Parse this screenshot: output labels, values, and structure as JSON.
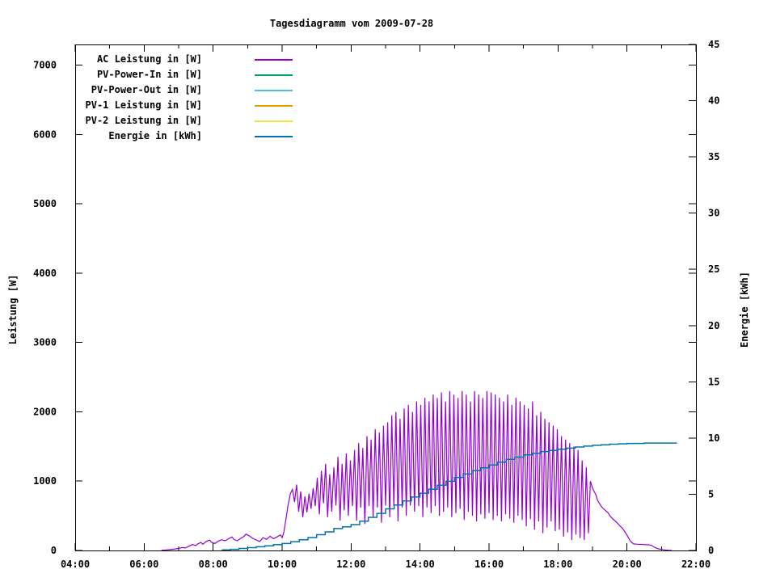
{
  "chart_data": {
    "type": "line",
    "title": "Tagesdiagramm vom 2009-07-28",
    "legend_position": "top-left",
    "grid": false,
    "x_axis": {
      "unit": "time",
      "range_hours": [
        4,
        22
      ],
      "tick_hours": [
        4,
        6,
        8,
        10,
        12,
        14,
        16,
        18,
        20,
        22
      ],
      "tick_labels": [
        "04:00",
        "06:00",
        "08:00",
        "10:00",
        "12:00",
        "14:00",
        "16:00",
        "18:00",
        "20:00",
        "22:00"
      ],
      "minor_tick_hours": [
        5,
        7,
        9,
        11,
        13,
        15,
        17,
        19,
        21
      ]
    },
    "y_axis": {
      "label": "Leistung [W]",
      "range": [
        0,
        7300
      ],
      "tick_values": [
        0,
        1000,
        2000,
        3000,
        4000,
        5000,
        6000,
        7000
      ],
      "tick_labels": [
        "0",
        "1000",
        "2000",
        "3000",
        "4000",
        "5000",
        "6000",
        "7000"
      ]
    },
    "y2_axis": {
      "label": "Energie [kWh]",
      "range": [
        0,
        45
      ],
      "tick_values": [
        0,
        5,
        10,
        15,
        20,
        25,
        30,
        35,
        40,
        45
      ],
      "tick_labels": [
        "0",
        "5",
        "10",
        "15",
        "20",
        "25",
        "30",
        "35",
        "40",
        "45"
      ]
    },
    "series": [
      {
        "name": "AC Leistung in [W]",
        "color": "#9400D3",
        "axis": "y1",
        "style": "line",
        "points": [
          [
            6.5,
            3
          ],
          [
            6.6,
            6
          ],
          [
            6.7,
            10
          ],
          [
            6.8,
            16
          ],
          [
            6.9,
            22
          ],
          [
            7.0,
            30
          ],
          [
            7.1,
            42
          ],
          [
            7.2,
            36
          ],
          [
            7.3,
            62
          ],
          [
            7.4,
            85
          ],
          [
            7.5,
            70
          ],
          [
            7.55,
            95
          ],
          [
            7.65,
            115
          ],
          [
            7.7,
            90
          ],
          [
            7.8,
            130
          ],
          [
            7.9,
            150
          ],
          [
            7.95,
            120
          ],
          [
            8.05,
            100
          ],
          [
            8.15,
            135
          ],
          [
            8.25,
            155
          ],
          [
            8.35,
            140
          ],
          [
            8.45,
            170
          ],
          [
            8.55,
            195
          ],
          [
            8.6,
            160
          ],
          [
            8.7,
            140
          ],
          [
            8.8,
            175
          ],
          [
            8.9,
            205
          ],
          [
            8.95,
            235
          ],
          [
            9.05,
            210
          ],
          [
            9.15,
            175
          ],
          [
            9.25,
            150
          ],
          [
            9.35,
            130
          ],
          [
            9.45,
            185
          ],
          [
            9.55,
            160
          ],
          [
            9.65,
            205
          ],
          [
            9.75,
            170
          ],
          [
            9.85,
            195
          ],
          [
            9.95,
            225
          ],
          [
            10.0,
            185
          ],
          [
            10.05,
            260
          ],
          [
            10.1,
            420
          ],
          [
            10.17,
            650
          ],
          [
            10.24,
            820
          ],
          [
            10.3,
            880
          ],
          [
            10.36,
            700
          ],
          [
            10.42,
            950
          ],
          [
            10.48,
            560
          ],
          [
            10.54,
            850
          ],
          [
            10.6,
            480
          ],
          [
            10.66,
            780
          ],
          [
            10.72,
            550
          ],
          [
            10.78,
            820
          ],
          [
            10.84,
            600
          ],
          [
            10.9,
            900
          ],
          [
            10.96,
            640
          ],
          [
            11.02,
            1050
          ],
          [
            11.08,
            520
          ],
          [
            11.14,
            1150
          ],
          [
            11.2,
            680
          ],
          [
            11.26,
            1250
          ],
          [
            11.32,
            480
          ],
          [
            11.38,
            1100
          ],
          [
            11.44,
            560
          ],
          [
            11.5,
            1200
          ],
          [
            11.56,
            650
          ],
          [
            11.62,
            1350
          ],
          [
            11.68,
            430
          ],
          [
            11.74,
            1250
          ],
          [
            11.8,
            580
          ],
          [
            11.86,
            1400
          ],
          [
            11.92,
            500
          ],
          [
            11.98,
            1300
          ],
          [
            12.04,
            640
          ],
          [
            12.1,
            1450
          ],
          [
            12.16,
            430
          ],
          [
            12.22,
            1550
          ],
          [
            12.28,
            620
          ],
          [
            12.34,
            1480
          ],
          [
            12.4,
            380
          ],
          [
            12.46,
            1650
          ],
          [
            12.52,
            640
          ],
          [
            12.58,
            1600
          ],
          [
            12.64,
            480
          ],
          [
            12.7,
            1750
          ],
          [
            12.76,
            620
          ],
          [
            12.82,
            1700
          ],
          [
            12.88,
            400
          ],
          [
            12.94,
            1800
          ],
          [
            13.0,
            650
          ],
          [
            13.06,
            1850
          ],
          [
            13.12,
            480
          ],
          [
            13.18,
            1950
          ],
          [
            13.24,
            640
          ],
          [
            13.3,
            2000
          ],
          [
            13.36,
            420
          ],
          [
            13.42,
            1900
          ],
          [
            13.48,
            620
          ],
          [
            13.54,
            2050
          ],
          [
            13.6,
            500
          ],
          [
            13.66,
            2100
          ],
          [
            13.72,
            650
          ],
          [
            13.78,
            2000
          ],
          [
            13.84,
            560
          ],
          [
            13.9,
            2150
          ],
          [
            13.96,
            640
          ],
          [
            14.02,
            2100
          ],
          [
            14.08,
            480
          ],
          [
            14.14,
            2200
          ],
          [
            14.2,
            620
          ],
          [
            14.26,
            2150
          ],
          [
            14.32,
            540
          ],
          [
            14.38,
            2250
          ],
          [
            14.44,
            640
          ],
          [
            14.5,
            2200
          ],
          [
            14.56,
            500
          ],
          [
            14.62,
            2280
          ],
          [
            14.68,
            560
          ],
          [
            14.74,
            2150
          ],
          [
            14.8,
            620
          ],
          [
            14.86,
            2300
          ],
          [
            14.92,
            480
          ],
          [
            14.98,
            2250
          ],
          [
            15.04,
            540
          ],
          [
            15.1,
            2200
          ],
          [
            15.16,
            600
          ],
          [
            15.22,
            2300
          ],
          [
            15.28,
            440
          ],
          [
            15.34,
            2250
          ],
          [
            15.4,
            560
          ],
          [
            15.46,
            2150
          ],
          [
            15.52,
            500
          ],
          [
            15.58,
            2300
          ],
          [
            15.64,
            420
          ],
          [
            15.7,
            2250
          ],
          [
            15.76,
            520
          ],
          [
            15.82,
            2200
          ],
          [
            15.88,
            460
          ],
          [
            15.94,
            2300
          ],
          [
            16.0,
            540
          ],
          [
            16.06,
            2280
          ],
          [
            16.12,
            440
          ],
          [
            16.18,
            2250
          ],
          [
            16.24,
            500
          ],
          [
            16.3,
            2200
          ],
          [
            16.36,
            420
          ],
          [
            16.42,
            2150
          ],
          [
            16.48,
            520
          ],
          [
            16.54,
            2250
          ],
          [
            16.6,
            460
          ],
          [
            16.66,
            2100
          ],
          [
            16.72,
            400
          ],
          [
            16.78,
            2200
          ],
          [
            16.84,
            500
          ],
          [
            16.9,
            2150
          ],
          [
            16.96,
            440
          ],
          [
            17.02,
            2100
          ],
          [
            17.08,
            350
          ],
          [
            17.14,
            2050
          ],
          [
            17.2,
            450
          ],
          [
            17.26,
            2150
          ],
          [
            17.32,
            300
          ],
          [
            17.38,
            1950
          ],
          [
            17.44,
            420
          ],
          [
            17.5,
            2000
          ],
          [
            17.56,
            250
          ],
          [
            17.62,
            1900
          ],
          [
            17.68,
            330
          ],
          [
            17.74,
            1850
          ],
          [
            17.8,
            420
          ],
          [
            17.86,
            1800
          ],
          [
            17.92,
            280
          ],
          [
            17.98,
            1750
          ],
          [
            18.04,
            300
          ],
          [
            18.1,
            1650
          ],
          [
            18.16,
            200
          ],
          [
            18.22,
            1600
          ],
          [
            18.28,
            260
          ],
          [
            18.34,
            1550
          ],
          [
            18.4,
            150
          ],
          [
            18.46,
            1500
          ],
          [
            18.52,
            230
          ],
          [
            18.58,
            1450
          ],
          [
            18.64,
            180
          ],
          [
            18.7,
            1300
          ],
          [
            18.76,
            150
          ],
          [
            18.82,
            1200
          ],
          [
            18.88,
            250
          ],
          [
            18.94,
            1000
          ],
          [
            19.0,
            900
          ],
          [
            19.05,
            850
          ],
          [
            19.1,
            800
          ],
          [
            19.15,
            720
          ],
          [
            19.2,
            680
          ],
          [
            19.25,
            640
          ],
          [
            19.3,
            610
          ],
          [
            19.35,
            590
          ],
          [
            19.4,
            565
          ],
          [
            19.45,
            545
          ],
          [
            19.5,
            505
          ],
          [
            19.55,
            475
          ],
          [
            19.6,
            450
          ],
          [
            19.65,
            430
          ],
          [
            19.7,
            405
          ],
          [
            19.75,
            380
          ],
          [
            19.8,
            350
          ],
          [
            19.85,
            330
          ],
          [
            19.9,
            300
          ],
          [
            19.95,
            260
          ],
          [
            20.0,
            220
          ],
          [
            20.05,
            175
          ],
          [
            20.1,
            135
          ],
          [
            20.15,
            110
          ],
          [
            20.2,
            95
          ],
          [
            20.3,
            90
          ],
          [
            20.4,
            88
          ],
          [
            20.5,
            85
          ],
          [
            20.6,
            82
          ],
          [
            20.7,
            78
          ],
          [
            20.8,
            45
          ],
          [
            20.9,
            25
          ],
          [
            21.0,
            15
          ],
          [
            21.1,
            8
          ],
          [
            21.2,
            4
          ],
          [
            21.3,
            2
          ]
        ]
      },
      {
        "name": "PV-Power-In in [W]",
        "color": "#009E73",
        "axis": "y1",
        "style": "line",
        "points": []
      },
      {
        "name": "PV-Power-Out in [W]",
        "color": "#56B4E9",
        "axis": "y1",
        "style": "line",
        "points": []
      },
      {
        "name": "PV-1 Leistung in [W]",
        "color": "#E69F00",
        "axis": "y1",
        "style": "line",
        "points": []
      },
      {
        "name": "PV-2 Leistung in [W]",
        "color": "#F0E442",
        "axis": "y1",
        "style": "line",
        "points": []
      },
      {
        "name": "Energie in [kWh]",
        "color": "#0072B2",
        "axis": "y2",
        "style": "step",
        "points": [
          [
            8.25,
            0.05
          ],
          [
            8.5,
            0.1
          ],
          [
            8.75,
            0.18
          ],
          [
            9.0,
            0.25
          ],
          [
            9.25,
            0.33
          ],
          [
            9.5,
            0.42
          ],
          [
            9.75,
            0.52
          ],
          [
            10.0,
            0.62
          ],
          [
            10.25,
            0.78
          ],
          [
            10.5,
            0.95
          ],
          [
            10.75,
            1.15
          ],
          [
            11.0,
            1.4
          ],
          [
            11.25,
            1.65
          ],
          [
            11.5,
            1.95
          ],
          [
            11.75,
            2.1
          ],
          [
            12.0,
            2.3
          ],
          [
            12.25,
            2.6
          ],
          [
            12.5,
            2.95
          ],
          [
            12.75,
            3.3
          ],
          [
            13.0,
            3.7
          ],
          [
            13.25,
            4.05
          ],
          [
            13.5,
            4.4
          ],
          [
            13.75,
            4.75
          ],
          [
            14.0,
            5.1
          ],
          [
            14.25,
            5.45
          ],
          [
            14.5,
            5.8
          ],
          [
            14.75,
            6.15
          ],
          [
            15.0,
            6.5
          ],
          [
            15.25,
            6.8
          ],
          [
            15.5,
            7.1
          ],
          [
            15.75,
            7.35
          ],
          [
            16.0,
            7.6
          ],
          [
            16.25,
            7.85
          ],
          [
            16.5,
            8.1
          ],
          [
            16.75,
            8.3
          ],
          [
            17.0,
            8.5
          ],
          [
            17.25,
            8.65
          ],
          [
            17.5,
            8.8
          ],
          [
            17.75,
            8.9
          ],
          [
            18.0,
            9.0
          ],
          [
            18.25,
            9.1
          ],
          [
            18.5,
            9.2
          ],
          [
            18.75,
            9.28
          ],
          [
            19.0,
            9.35
          ],
          [
            19.25,
            9.4
          ],
          [
            19.5,
            9.45
          ],
          [
            19.75,
            9.48
          ],
          [
            20.0,
            9.52
          ],
          [
            20.5,
            9.55
          ],
          [
            21.0,
            9.55
          ],
          [
            21.45,
            9.55
          ]
        ]
      }
    ]
  }
}
